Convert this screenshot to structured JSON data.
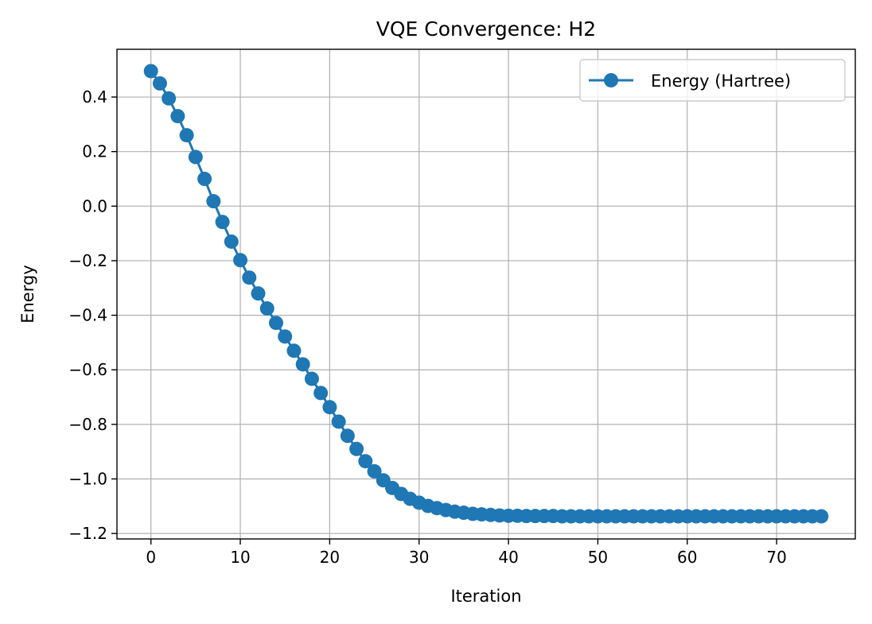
{
  "chart_data": {
    "type": "line",
    "title": "VQE Convergence: H2",
    "xlabel": "Iteration",
    "ylabel": "Energy",
    "xlim": [
      -3.8,
      78.8
    ],
    "ylim": [
      -1.22,
      0.575
    ],
    "xticks": [
      0,
      10,
      20,
      30,
      40,
      50,
      60,
      70
    ],
    "yticks": [
      0.4,
      0.2,
      0.0,
      -0.2,
      -0.4,
      -0.6,
      -0.8,
      -1.0,
      -1.2
    ],
    "ytick_labels": [
      "0.4",
      "0.2",
      "0.0",
      "−0.2",
      "−0.4",
      "−0.6",
      "−0.8",
      "−1.0",
      "−1.2"
    ],
    "grid": true,
    "legend_position": "upper right",
    "series": [
      {
        "name": "Energy (Hartree)",
        "color": "#1f77b4",
        "marker": "circle",
        "x": [
          0,
          1,
          2,
          3,
          4,
          5,
          6,
          7,
          8,
          9,
          10,
          11,
          12,
          13,
          14,
          15,
          16,
          17,
          18,
          19,
          20,
          21,
          22,
          23,
          24,
          25,
          26,
          27,
          28,
          29,
          30,
          31,
          32,
          33,
          34,
          35,
          36,
          37,
          38,
          39,
          40,
          41,
          42,
          43,
          44,
          45,
          46,
          47,
          48,
          49,
          50,
          51,
          52,
          53,
          54,
          55,
          56,
          57,
          58,
          59,
          60,
          61,
          62,
          63,
          64,
          65,
          66,
          67,
          68,
          69,
          70,
          71,
          72,
          73,
          74,
          75
        ],
        "values": [
          0.495,
          0.45,
          0.395,
          0.33,
          0.26,
          0.18,
          0.1,
          0.018,
          -0.058,
          -0.13,
          -0.198,
          -0.262,
          -0.32,
          -0.375,
          -0.428,
          -0.478,
          -0.53,
          -0.58,
          -0.633,
          -0.685,
          -0.737,
          -0.79,
          -0.842,
          -0.89,
          -0.935,
          -0.972,
          -1.005,
          -1.033,
          -1.055,
          -1.073,
          -1.087,
          -1.099,
          -1.107,
          -1.114,
          -1.12,
          -1.124,
          -1.128,
          -1.13,
          -1.132,
          -1.134,
          -1.135,
          -1.135,
          -1.136,
          -1.136,
          -1.136,
          -1.136,
          -1.137,
          -1.137,
          -1.137,
          -1.137,
          -1.137,
          -1.137,
          -1.137,
          -1.137,
          -1.137,
          -1.137,
          -1.137,
          -1.137,
          -1.137,
          -1.137,
          -1.137,
          -1.137,
          -1.137,
          -1.137,
          -1.137,
          -1.137,
          -1.137,
          -1.137,
          -1.137,
          -1.137,
          -1.137,
          -1.137,
          -1.137,
          -1.137,
          -1.137,
          -1.137
        ]
      }
    ]
  }
}
